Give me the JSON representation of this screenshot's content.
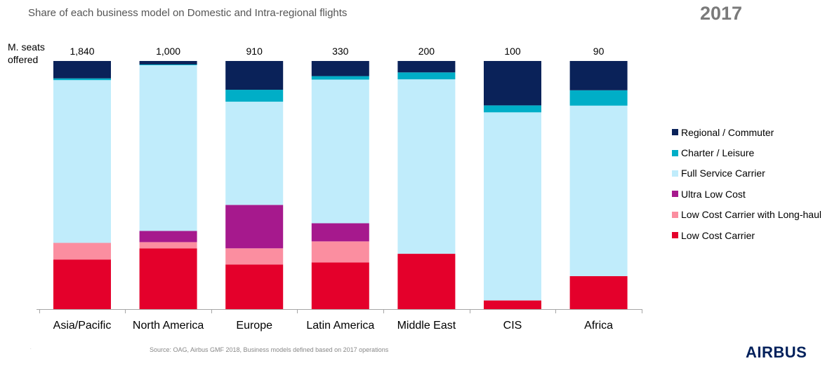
{
  "header": {
    "title": "Share of each business model on Domestic and Intra-regional flights",
    "year": "2017"
  },
  "seats_label_line1": "M. seats",
  "seats_label_line2": "offered",
  "footer": {
    "source": "Source: OAG, Airbus GMF 2018, Business models defined based on 2017 operations",
    "logo_text": "AIRBUS"
  },
  "chart_data": {
    "type": "bar",
    "stacked": true,
    "normalized": true,
    "title": "Share of each business model on Domestic and Intra-regional flights",
    "categories": [
      "Asia/Pacific",
      "North America",
      "Europe",
      "Latin America",
      "Middle East",
      "CIS",
      "Africa"
    ],
    "totals_label": "M. seats offered",
    "totals": [
      "1,840",
      "1,000",
      "910",
      "330",
      "200",
      "100",
      "90"
    ],
    "ylim": [
      0,
      100
    ],
    "grid": false,
    "legend_position": "right",
    "series": [
      {
        "name": "Low Cost Carrier",
        "color": "#e4002b",
        "values": [
          20,
          24.5,
          18,
          18.8,
          22.3,
          3.5,
          13.3
        ]
      },
      {
        "name": "Low Cost Carrier with Long-haul",
        "color": "#fb8ea0",
        "values": [
          6.7,
          2.5,
          6.5,
          8.5,
          0,
          0,
          0
        ]
      },
      {
        "name": "Ultra Low Cost",
        "color": "#a6198d",
        "values": [
          0,
          4.5,
          17.5,
          7.3,
          0,
          0,
          0
        ]
      },
      {
        "name": "Full Service Carrier",
        "color": "#c0ecfb",
        "values": [
          65.6,
          66.8,
          41.6,
          57.9,
          70.3,
          75.8,
          68.7
        ]
      },
      {
        "name": "Charter / Leisure",
        "color": "#00aec7",
        "values": [
          0.7,
          0.3,
          4.8,
          1.4,
          2.8,
          2.8,
          6.2
        ]
      },
      {
        "name": "Regional / Commuter",
        "color": "#0a2259",
        "values": [
          7,
          1.4,
          11.6,
          6.1,
          4.6,
          17.9,
          11.8
        ]
      }
    ]
  }
}
